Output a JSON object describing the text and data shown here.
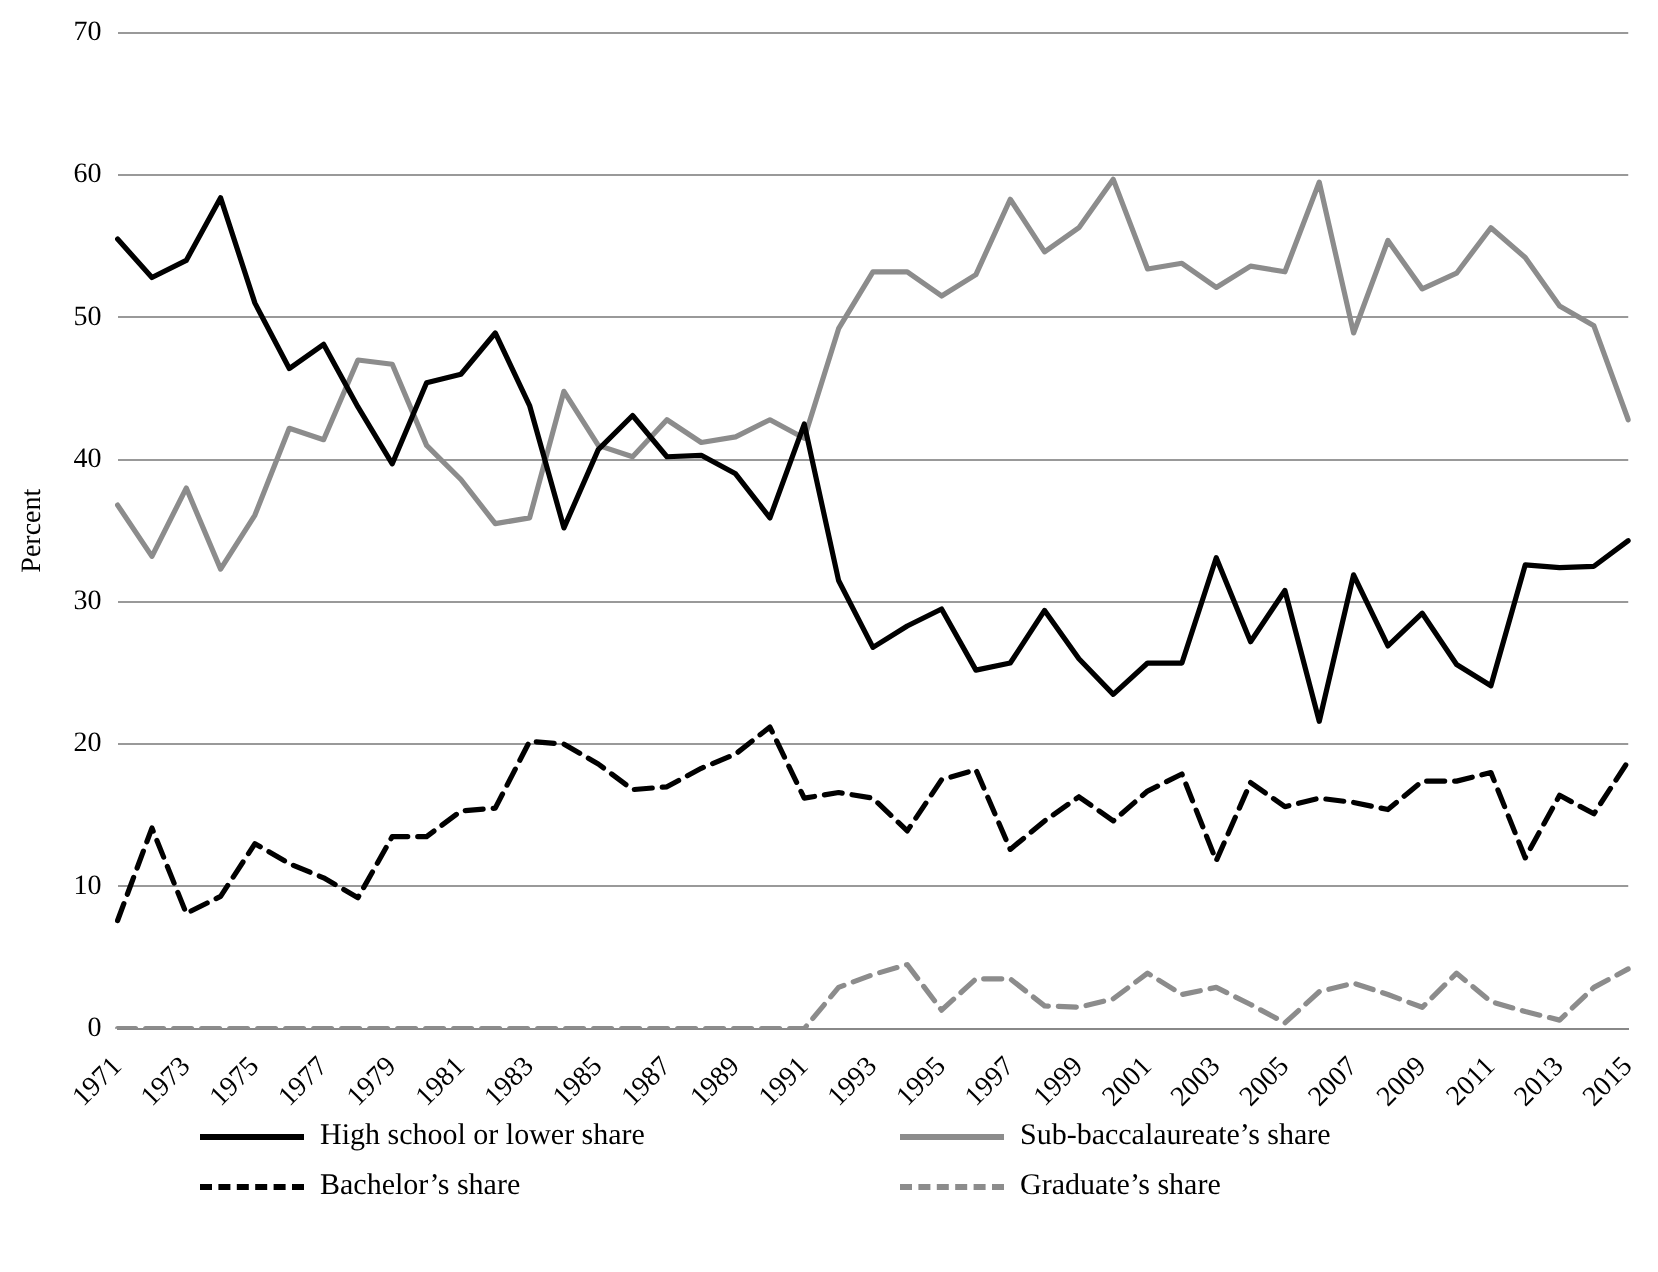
{
  "chart_data": {
    "type": "line",
    "ylabel": "Percent",
    "categories": [
      "1971",
      null,
      "1973",
      null,
      "1975",
      null,
      "1977",
      null,
      "1979",
      null,
      "1981",
      null,
      "1983",
      null,
      "1985",
      null,
      "1987",
      null,
      "1989",
      null,
      "1991",
      null,
      "1993",
      null,
      "1995",
      null,
      "1997",
      null,
      "1999",
      null,
      "2001",
      null,
      "2003",
      null,
      "2005",
      null,
      "2007",
      null,
      "2009",
      null,
      "2011",
      null,
      "2013",
      null,
      "2015"
    ],
    "ylim": [
      0,
      70
    ],
    "yticks": [
      0,
      10,
      20,
      30,
      40,
      50,
      60,
      70
    ],
    "grid": "y",
    "legend": "bottom",
    "marker": "none",
    "series": [
      {
        "name": "High school or lower share",
        "color": "#000000",
        "line_style": "solid",
        "values": [
          55.5,
          52.8,
          54,
          58.4,
          51,
          46.4,
          48.1,
          43.7,
          39.7,
          45.4,
          46,
          48.9,
          43.8,
          35.2,
          40.7,
          43.1,
          40.2,
          40.3,
          39,
          35.9,
          42.5,
          31.5,
          26.8,
          28.3,
          29.5,
          25.2,
          25.7,
          29.4,
          26,
          23.5,
          25.7,
          25.7,
          33.1,
          27.2,
          30.8,
          21.6,
          31.9,
          26.9,
          29.2,
          25.6,
          24.1,
          32.6,
          32.4,
          32.5,
          34.3
        ]
      },
      {
        "name": "Sub-baccalaureate’s share",
        "color": "#8c8c8c",
        "line_style": "solid",
        "values": [
          36.8,
          33.2,
          38,
          32.3,
          36.1,
          42.2,
          41.4,
          47,
          46.7,
          41,
          38.6,
          35.5,
          35.9,
          44.8,
          41,
          40.2,
          42.8,
          41.2,
          41.6,
          42.8,
          41.5,
          49.2,
          53.2,
          53.2,
          51.5,
          53,
          58.3,
          54.6,
          56.3,
          59.7,
          53.4,
          53.8,
          52.1,
          53.6,
          53.2,
          59.5,
          48.9,
          55.4,
          52,
          53.1,
          56.3,
          54.2,
          50.8,
          49.4,
          42.8
        ]
      },
      {
        "name": "Bachelor’s share",
        "color": "#000000",
        "line_style": "dashed",
        "values": [
          7.6,
          14.1,
          8.1,
          9.3,
          13,
          11.6,
          10.6,
          9.2,
          13.5,
          13.5,
          15.3,
          15.5,
          20.2,
          20,
          18.6,
          16.8,
          17,
          18.3,
          19.3,
          21.2,
          16.2,
          16.6,
          16.2,
          13.9,
          17.5,
          18.2,
          12.6,
          14.6,
          16.3,
          14.6,
          16.7,
          17.9,
          11.8,
          17.3,
          15.6,
          16.2,
          15.9,
          15.4,
          17.4,
          17.4,
          18,
          12,
          16.4,
          15.1,
          18.8
        ]
      },
      {
        "name": "Graduate’s share",
        "color": "#8c8c8c",
        "line_style": "dashed",
        "values": [
          0,
          0,
          0,
          0,
          0,
          0,
          0,
          0,
          0,
          0,
          0,
          0,
          0,
          0,
          0,
          0,
          0,
          0,
          0,
          0,
          0,
          2.9,
          3.8,
          4.5,
          1.3,
          3.5,
          3.5,
          1.6,
          1.5,
          2.1,
          3.9,
          2.4,
          2.9,
          1.7,
          0.4,
          2.6,
          3.2,
          2.4,
          1.5,
          3.9,
          1.9,
          1.2,
          0.6,
          2.9,
          4.2
        ]
      }
    ]
  }
}
